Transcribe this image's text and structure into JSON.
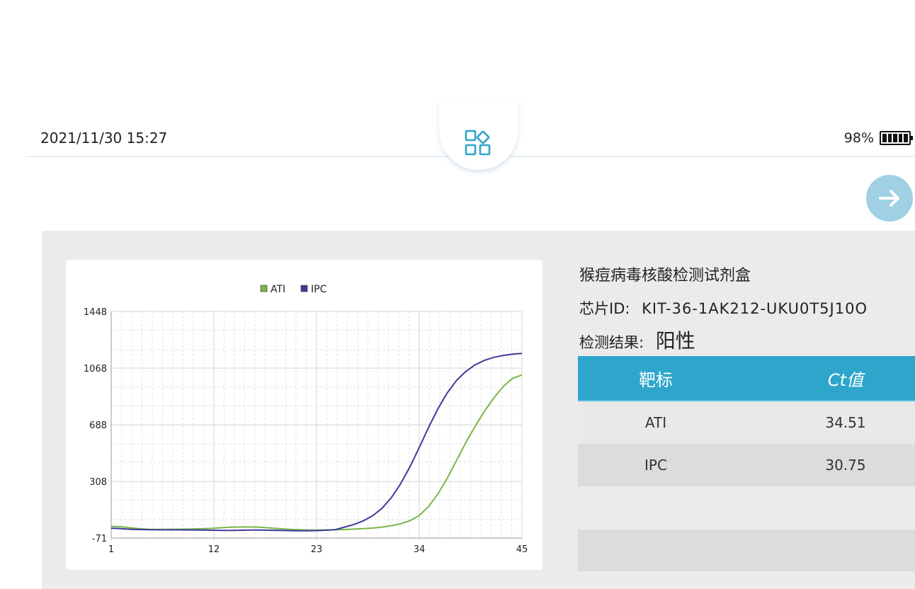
{
  "status": {
    "datetime": "2021/11/30 15:27",
    "battery": "98%",
    "battery_level": 0.98
  },
  "icons": {
    "home": "apps-grid-icon",
    "next": "arrow-right-icon"
  },
  "info": {
    "kit_name": "猴痘病毒核酸检测试剂盒",
    "chip_label": "芯片ID:",
    "chip_id": "KIT-36-1AK212-UKU0T5J10O",
    "result_label": "检测结果:",
    "result": "阳性"
  },
  "table": {
    "headers": [
      "靶标",
      "Ct值"
    ],
    "rows": [
      {
        "target": "ATI",
        "ct": "34.51"
      },
      {
        "target": "IPC",
        "ct": "30.75"
      }
    ]
  },
  "colors": {
    "accent": "#2ea6cc",
    "ati": "#7ab648",
    "ipc": "#3d3a9a"
  },
  "chart_data": {
    "type": "line",
    "grid": true,
    "legend": "top-center",
    "xlim": [
      1,
      45
    ],
    "ylim": [
      -71,
      1448
    ],
    "xticks": [
      "1",
      "12",
      "23",
      "34",
      "45"
    ],
    "yticks": [
      "1448",
      "1068",
      "688",
      "308",
      "-71"
    ],
    "x": [
      1,
      2,
      3,
      4,
      5,
      6,
      7,
      8,
      9,
      10,
      11,
      12,
      13,
      14,
      15,
      16,
      17,
      18,
      19,
      20,
      21,
      22,
      23,
      24,
      25,
      26,
      27,
      28,
      29,
      30,
      31,
      32,
      33,
      34,
      35,
      36,
      37,
      38,
      39,
      40,
      41,
      42,
      43,
      44,
      45
    ],
    "series": [
      {
        "name": "ATI",
        "color": "#7ab648",
        "values": [
          8,
          5,
          -2,
          -8,
          -12,
          -13,
          -13,
          -12,
          -11,
          -10,
          -8,
          -5,
          -1,
          2,
          3,
          3,
          1,
          -3,
          -8,
          -12,
          -15,
          -17,
          -18,
          -17,
          -16,
          -14,
          -11,
          -8,
          -4,
          2,
          12,
          25,
          45,
          80,
          140,
          225,
          330,
          450,
          570,
          680,
          780,
          870,
          945,
          1000,
          1022
        ]
      },
      {
        "name": "IPC",
        "color": "#3d3a9a",
        "values": [
          -5,
          -8,
          -12,
          -14,
          -15,
          -16,
          -16,
          -16,
          -17,
          -17,
          -18,
          -19,
          -20,
          -20,
          -19,
          -18,
          -18,
          -19,
          -20,
          -21,
          -22,
          -22,
          -21,
          -19,
          -15,
          2,
          20,
          44,
          78,
          128,
          199,
          292,
          406,
          536,
          671,
          796,
          902,
          986,
          1047,
          1091,
          1121,
          1141,
          1153,
          1162,
          1167
        ]
      }
    ]
  }
}
